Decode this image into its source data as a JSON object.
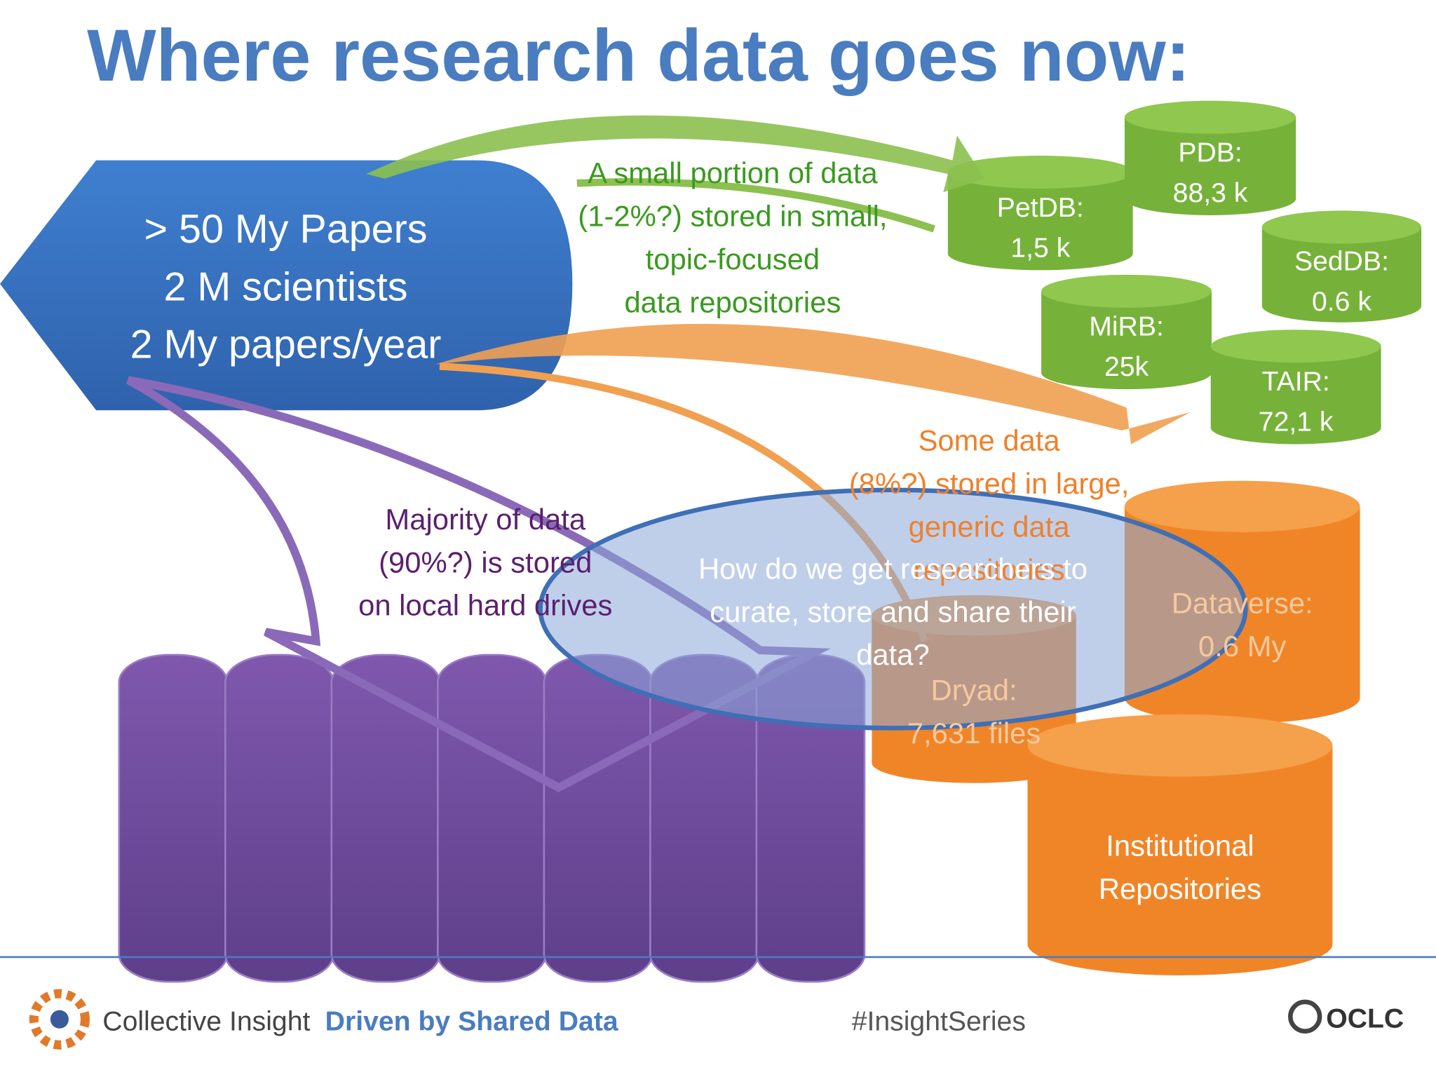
{
  "title": "Where research data goes now:",
  "source": {
    "lines": [
      "> 50 My Papers",
      "2 M scientists",
      "2 My papers/year"
    ]
  },
  "annotations": {
    "small": [
      "A small portion of data",
      "(1-2%?) stored in small,",
      "topic-focused",
      "data repositories"
    ],
    "large": [
      "Some data",
      "(8%?) stored in large,",
      "generic data",
      "repositories"
    ],
    "local": [
      "Majority of data",
      "(90%?)  is stored",
      "on local hard drives"
    ],
    "question": [
      "How do we get researchers to",
      "curate, store and share their",
      "data?"
    ]
  },
  "repositories": {
    "small": [
      {
        "name": "PetDB:",
        "size": "1,5 k"
      },
      {
        "name": "PDB:",
        "size": "88,3 k"
      },
      {
        "name": "SedDB:",
        "size": "0.6 k"
      },
      {
        "name": "MiRB:",
        "size": "25k"
      },
      {
        "name": "TAIR:",
        "size": "72,1 k"
      }
    ],
    "large": [
      {
        "name": "Dryad:",
        "size": "7,631 files"
      },
      {
        "name": "Dataverse:",
        "size": "0.6 My"
      },
      {
        "name": "Institutional",
        "size": "Repositories"
      }
    ]
  },
  "footer": {
    "brand": "Collective Insight",
    "tagline": "Driven by Shared Data",
    "hashtag": "#InsightSeries",
    "logo": "OCLC"
  }
}
